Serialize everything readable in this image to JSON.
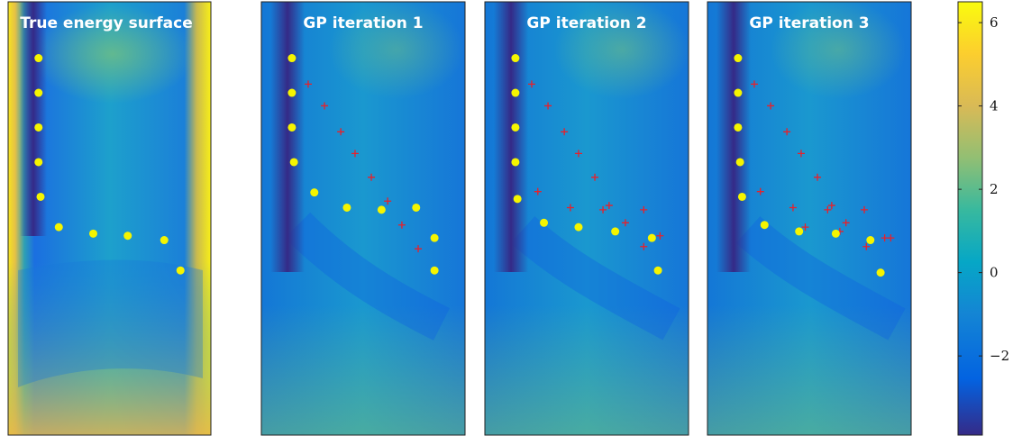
{
  "chart_data": {
    "type": "heatmap",
    "panels": [
      {
        "title": "True energy surface",
        "points": [
          [
            0.15,
            0.13
          ],
          [
            0.15,
            0.21
          ],
          [
            0.15,
            0.29
          ],
          [
            0.15,
            0.37
          ],
          [
            0.16,
            0.45
          ],
          [
            0.25,
            0.52
          ],
          [
            0.42,
            0.535
          ],
          [
            0.59,
            0.54
          ],
          [
            0.77,
            0.55
          ],
          [
            0.85,
            0.62
          ]
        ],
        "crosses": []
      },
      {
        "title": "GP iteration 1",
        "points": [
          [
            0.15,
            0.13
          ],
          [
            0.15,
            0.21
          ],
          [
            0.15,
            0.29
          ],
          [
            0.16,
            0.37
          ],
          [
            0.26,
            0.44
          ],
          [
            0.42,
            0.475
          ],
          [
            0.59,
            0.48
          ],
          [
            0.76,
            0.475
          ],
          [
            0.85,
            0.545
          ],
          [
            0.85,
            0.62
          ]
        ],
        "crosses": [
          [
            0.23,
            0.19
          ],
          [
            0.31,
            0.24
          ],
          [
            0.39,
            0.3
          ],
          [
            0.46,
            0.35
          ],
          [
            0.54,
            0.405
          ],
          [
            0.62,
            0.46
          ],
          [
            0.69,
            0.515
          ],
          [
            0.77,
            0.57
          ]
        ]
      },
      {
        "title": "GP iteration 2",
        "points": [
          [
            0.15,
            0.13
          ],
          [
            0.15,
            0.21
          ],
          [
            0.15,
            0.29
          ],
          [
            0.15,
            0.37
          ],
          [
            0.16,
            0.455
          ],
          [
            0.29,
            0.51
          ],
          [
            0.46,
            0.52
          ],
          [
            0.64,
            0.53
          ],
          [
            0.82,
            0.545
          ],
          [
            0.85,
            0.62
          ]
        ],
        "crosses": [
          [
            0.23,
            0.19
          ],
          [
            0.31,
            0.24
          ],
          [
            0.39,
            0.3
          ],
          [
            0.46,
            0.35
          ],
          [
            0.54,
            0.405
          ],
          [
            0.26,
            0.438
          ],
          [
            0.42,
            0.475
          ],
          [
            0.58,
            0.48
          ],
          [
            0.61,
            0.47
          ],
          [
            0.69,
            0.51
          ],
          [
            0.78,
            0.48
          ],
          [
            0.78,
            0.565
          ],
          [
            0.86,
            0.54
          ]
        ]
      },
      {
        "title": "GP iteration 3",
        "points": [
          [
            0.15,
            0.13
          ],
          [
            0.15,
            0.21
          ],
          [
            0.15,
            0.29
          ],
          [
            0.16,
            0.37
          ],
          [
            0.17,
            0.45
          ],
          [
            0.28,
            0.515
          ],
          [
            0.45,
            0.53
          ],
          [
            0.63,
            0.535
          ],
          [
            0.8,
            0.55
          ],
          [
            0.85,
            0.625
          ]
        ],
        "crosses": [
          [
            0.23,
            0.19
          ],
          [
            0.31,
            0.24
          ],
          [
            0.39,
            0.3
          ],
          [
            0.46,
            0.35
          ],
          [
            0.54,
            0.405
          ],
          [
            0.26,
            0.438
          ],
          [
            0.42,
            0.475
          ],
          [
            0.59,
            0.48
          ],
          [
            0.61,
            0.47
          ],
          [
            0.68,
            0.51
          ],
          [
            0.77,
            0.48
          ],
          [
            0.48,
            0.52
          ],
          [
            0.65,
            0.53
          ],
          [
            0.78,
            0.565
          ],
          [
            0.87,
            0.545
          ],
          [
            0.9,
            0.545
          ],
          [
            0.8,
            0.55
          ]
        ]
      }
    ],
    "colorbar": {
      "ticks": [
        6,
        4,
        2,
        0,
        -2
      ],
      "tick_labels": [
        "6",
        "4",
        "2",
        "0",
        "−2"
      ],
      "range": [
        -3.9,
        6.5
      ],
      "colormap": [
        "#352a87",
        "#0363e1",
        "#1485d4",
        "#06a7c6",
        "#38b99e",
        "#92bf73",
        "#d9ba56",
        "#fcce2e",
        "#f9fb0e"
      ]
    },
    "marker_colors": {
      "point": "#f5f500",
      "cross": "#e8202a"
    }
  }
}
